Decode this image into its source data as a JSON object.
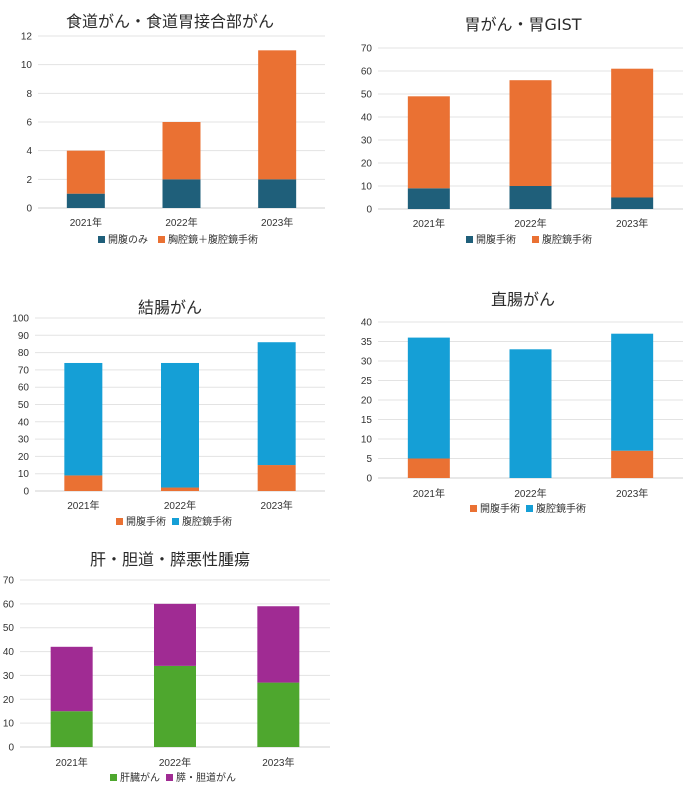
{
  "chart_data": [
    {
      "type": "bar",
      "stacked": true,
      "title": "食道がん・食道胃接合部がん",
      "categories": [
        "2021年",
        "2022年",
        "2023年"
      ],
      "series": [
        {
          "name": "開腹のみ",
          "color": "#1f5f7a",
          "values": [
            1,
            2,
            2
          ]
        },
        {
          "name": "胸腔鏡＋腹腔鏡手術",
          "color": "#ea7133",
          "values": [
            3,
            4,
            9
          ]
        }
      ],
      "ylim": [
        0,
        12
      ],
      "ystep": 2,
      "grid": true,
      "legend": "bottom"
    },
    {
      "type": "bar",
      "stacked": true,
      "title": "胃がん・胃GIST",
      "categories": [
        "2021年",
        "2022年",
        "2023年"
      ],
      "series": [
        {
          "name": "開腹手術",
          "color": "#1f5f7a",
          "values": [
            9,
            10,
            5
          ]
        },
        {
          "name": "腹腔鏡手術",
          "color": "#ea7133",
          "values": [
            40,
            46,
            56
          ]
        }
      ],
      "ylim": [
        0,
        70
      ],
      "ystep": 10,
      "grid": true,
      "legend": "bottom"
    },
    {
      "type": "bar",
      "stacked": true,
      "title": "結腸がん",
      "categories": [
        "2021年",
        "2022年",
        "2023年"
      ],
      "series": [
        {
          "name": "開腹手術",
          "color": "#ea7133",
          "values": [
            9,
            2,
            15
          ]
        },
        {
          "name": "腹腔鏡手術",
          "color": "#159fd6",
          "values": [
            65,
            72,
            71
          ]
        }
      ],
      "ylim": [
        0,
        100
      ],
      "ystep": 10,
      "grid": true,
      "legend": "bottom"
    },
    {
      "type": "bar",
      "stacked": true,
      "title": "直腸がん",
      "categories": [
        "2021年",
        "2022年",
        "2023年"
      ],
      "series": [
        {
          "name": "開腹手術",
          "color": "#ea7133",
          "values": [
            5,
            0,
            7
          ]
        },
        {
          "name": "腹腔鏡手術",
          "color": "#159fd6",
          "values": [
            31,
            33,
            30
          ]
        }
      ],
      "ylim": [
        0,
        40
      ],
      "ystep": 5,
      "grid": true,
      "legend": "bottom"
    },
    {
      "type": "bar",
      "stacked": true,
      "title": "肝・胆道・膵悪性腫瘍",
      "categories": [
        "2021年",
        "2022年",
        "2023年"
      ],
      "series": [
        {
          "name": "肝臓がん",
          "color": "#4ea72e",
          "values": [
            15,
            34,
            27
          ]
        },
        {
          "name": "膵・胆道がん",
          "color": "#a02b93",
          "values": [
            27,
            26,
            32
          ]
        }
      ],
      "ylim": [
        0,
        70
      ],
      "ystep": 10,
      "grid": true,
      "legend": "bottom"
    }
  ]
}
